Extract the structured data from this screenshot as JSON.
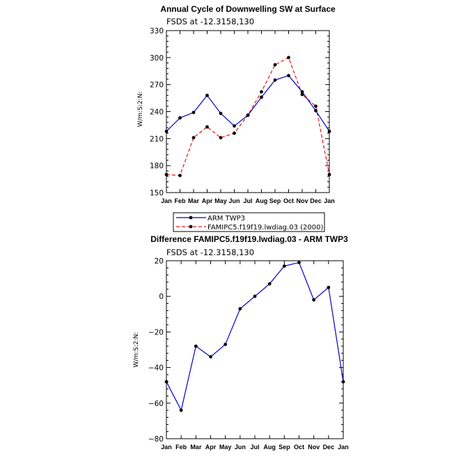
{
  "chart_data": [
    {
      "type": "line",
      "title": "Annual Cycle of Downwelling SW at Surface",
      "subtitle": "FSDS at -12.3158,130",
      "ylabel": "W/m:S:2:N:",
      "xlabel": "",
      "categories": [
        "Jan",
        "Feb",
        "Mar",
        "Apr",
        "May",
        "Jun",
        "Jul",
        "Aug",
        "Sep",
        "Oct",
        "Nov",
        "Dec",
        "Jan"
      ],
      "ylim": [
        150,
        330
      ],
      "yticks": [
        150,
        180,
        210,
        240,
        270,
        300,
        330
      ],
      "grid": false,
      "legend_position": "bottom",
      "series": [
        {
          "name": "ARM TWP3",
          "color": "#0000cc",
          "dash": "solid",
          "values": [
            218,
            233,
            239,
            258,
            238,
            224,
            236,
            256,
            275,
            280,
            262,
            241,
            218
          ]
        },
        {
          "name": "FAMIPC5.f19f19.lwdiag.03 (2000)",
          "color": "#ee1111",
          "dash": "dashed",
          "values": [
            170,
            169,
            211,
            223,
            211,
            216,
            236,
            262,
            292,
            300,
            259,
            246,
            170
          ]
        }
      ]
    },
    {
      "type": "line",
      "title": "Difference FAMIPC5.f19f19.lwdiag.03 - ARM TWP3",
      "subtitle": "FSDS at -12.3158,130",
      "ylabel": "W/m:S:2:N:",
      "xlabel": "",
      "categories": [
        "Jan",
        "Feb",
        "Mar",
        "Apr",
        "May",
        "Jun",
        "Jul",
        "Aug",
        "Sep",
        "Oct",
        "Nov",
        "Dec",
        "Jan"
      ],
      "ylim": [
        -80,
        20
      ],
      "yticks": [
        -80,
        -60,
        -40,
        -20,
        0,
        20
      ],
      "grid": false,
      "series": [
        {
          "color": "#0000cc",
          "dash": "solid",
          "values": [
            -48,
            -64,
            -28,
            -34,
            -27,
            -7,
            0,
            7,
            17,
            19,
            -2,
            5,
            -48
          ]
        }
      ]
    }
  ]
}
